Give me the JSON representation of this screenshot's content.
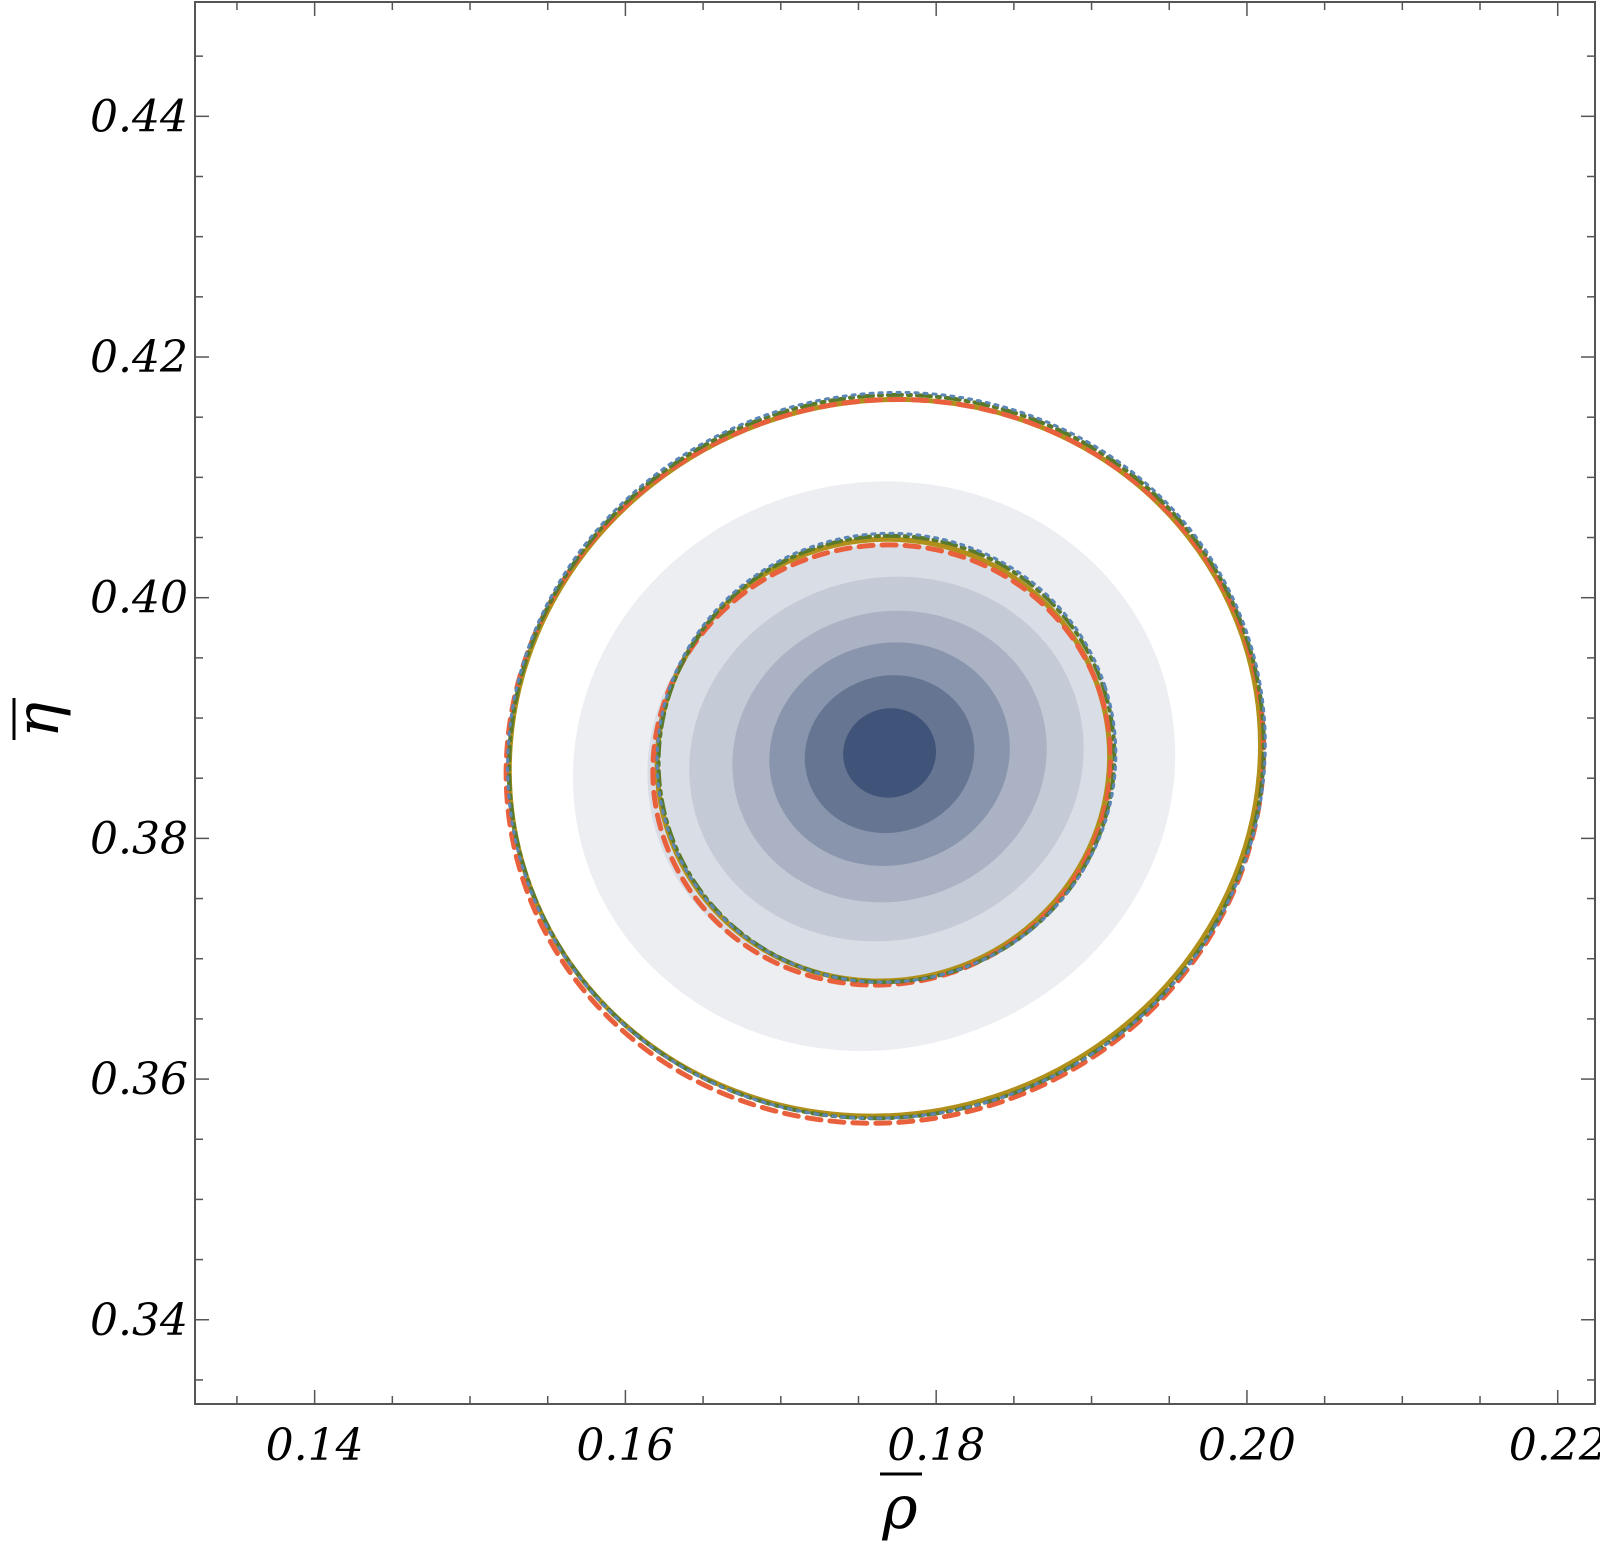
{
  "chart_data": {
    "type": "contour",
    "xlabel": "ρ",
    "ylabel": "η",
    "x_ticks": [
      "0.14",
      "0.16",
      "0.18",
      "0.20",
      "0.22"
    ],
    "y_ticks": [
      "0.34",
      "0.36",
      "0.38",
      "0.40",
      "0.42",
      "0.44"
    ],
    "xlim": [
      0.1323,
      0.2224
    ],
    "ylim": [
      0.333,
      0.4495
    ],
    "x_minor_step": 0.005,
    "y_minor_step": 0.005,
    "filled_density": {
      "center": [
        0.1768,
        0.3875
      ],
      "fill_colors": [
        "#ECEEF2",
        "#D9DDE5",
        "#C4CAD6",
        "#AAB2C3",
        "#8895AC",
        "#667692",
        "#3F5478"
      ],
      "levels": [
        {
          "cx": 0.176,
          "cy": 0.386,
          "rx": 0.0195,
          "ry": 0.0235
        },
        {
          "cx": 0.1765,
          "cy": 0.3863,
          "rx": 0.0152,
          "ry": 0.018
        },
        {
          "cx": 0.1768,
          "cy": 0.3866,
          "rx": 0.0128,
          "ry": 0.015
        },
        {
          "cx": 0.177,
          "cy": 0.3868,
          "rx": 0.0102,
          "ry": 0.012
        },
        {
          "cx": 0.177,
          "cy": 0.387,
          "rx": 0.0078,
          "ry": 0.0092
        },
        {
          "cx": 0.177,
          "cy": 0.387,
          "rx": 0.0055,
          "ry": 0.0065
        },
        {
          "cx": 0.177,
          "cy": 0.3871,
          "rx": 0.003,
          "ry": 0.0037
        }
      ]
    },
    "contours": [
      {
        "style": "solid",
        "color": "#B0901A",
        "width": 5,
        "dash": "",
        "ellipses": [
          {
            "cx": 0.1766,
            "cy": 0.3865,
            "rx": 0.0146,
            "ry": 0.0183
          },
          {
            "cx": 0.1767,
            "cy": 0.3867,
            "rx": 0.0243,
            "ry": 0.0296
          }
        ]
      },
      {
        "style": "dashed",
        "color": "#E8603C",
        "width": 5,
        "dash": "14 9",
        "ellipses": [
          {
            "cx": 0.1765,
            "cy": 0.3861,
            "rx": 0.0148,
            "ry": 0.0182
          },
          {
            "cx": 0.1767,
            "cy": 0.3864,
            "rx": 0.0245,
            "ry": 0.0299
          }
        ]
      },
      {
        "style": "dot-dashed",
        "color": "#5A7A2A",
        "width": 4,
        "dash": "14 6 3 6",
        "ellipses": [
          {
            "cx": 0.1768,
            "cy": 0.3866,
            "rx": 0.0147,
            "ry": 0.0185
          },
          {
            "cx": 0.1768,
            "cy": 0.3868,
            "rx": 0.0244,
            "ry": 0.0299
          }
        ]
      },
      {
        "style": "dotted",
        "color": "#5B86B5",
        "width": 3,
        "dash": "3 6",
        "ellipses": [
          {
            "cx": 0.1768,
            "cy": 0.3867,
            "rx": 0.0148,
            "ry": 0.0186
          },
          {
            "cx": 0.1768,
            "cy": 0.3869,
            "rx": 0.0245,
            "ry": 0.03
          }
        ]
      }
    ],
    "grid": false
  }
}
